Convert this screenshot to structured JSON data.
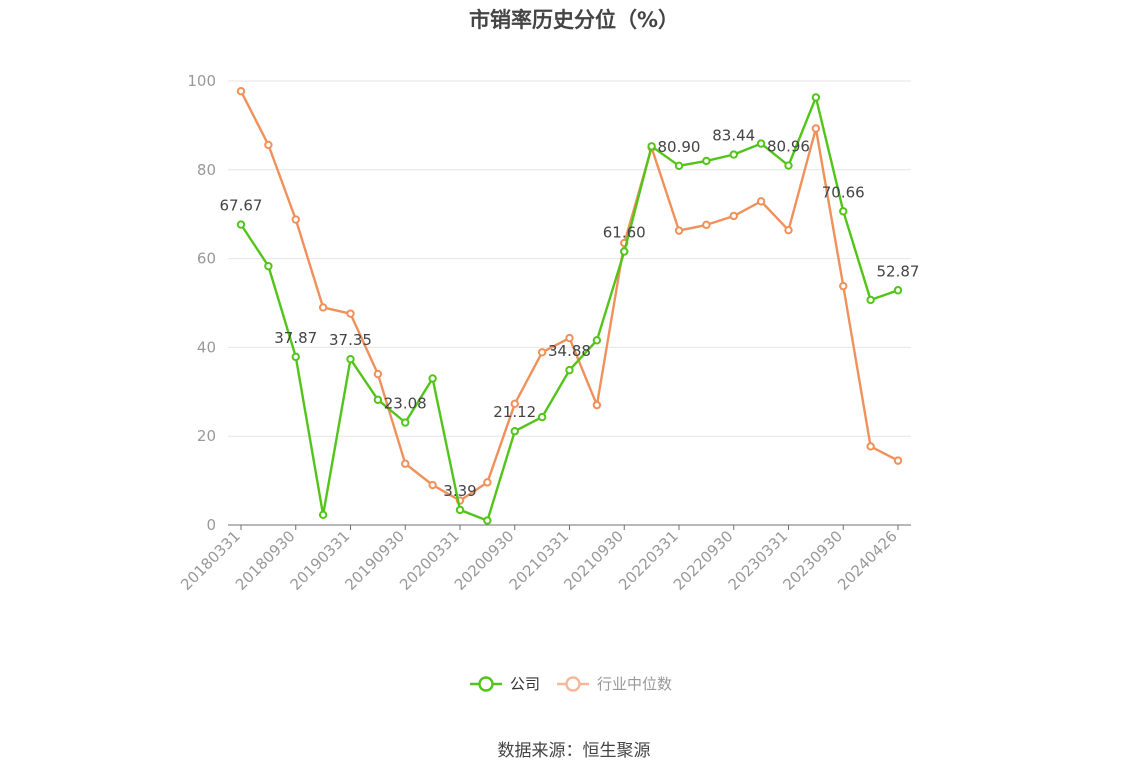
{
  "chart_data": {
    "type": "line",
    "title": "市销率历史分位（%）",
    "source": "数据来源：恒生聚源",
    "ylim": [
      0,
      100
    ],
    "yticks": [
      0,
      20,
      40,
      60,
      80,
      100
    ],
    "grid": true,
    "legend_position": "bottom",
    "x_tick_labels": [
      "20180331",
      "20180930",
      "20190331",
      "20190930",
      "20200331",
      "20200930",
      "20210331",
      "20210930",
      "20220331",
      "20220930",
      "20230331",
      "20230930",
      "20240426"
    ],
    "x": [
      "20180331",
      "20180630",
      "20180930",
      "20181231",
      "20190331",
      "20190630",
      "20190930",
      "20191231",
      "20200331",
      "20200630",
      "20200930",
      "20201231",
      "20210331",
      "20210630",
      "20210930",
      "20211231",
      "20220331",
      "20220630",
      "20220930",
      "20221231",
      "20230331",
      "20230630",
      "20230930",
      "20231231",
      "20240426"
    ],
    "series": [
      {
        "name": "公司",
        "color": "#52c41a",
        "values": [
          67.67,
          58.3,
          37.87,
          2.3,
          37.35,
          28.2,
          23.08,
          33.0,
          3.39,
          1.0,
          21.12,
          24.3,
          34.88,
          41.6,
          61.6,
          85.3,
          80.9,
          82.0,
          83.44,
          85.9,
          80.96,
          96.3,
          70.66,
          50.7,
          52.87
        ],
        "labels": [
          "67.67",
          null,
          "37.87",
          null,
          "37.35",
          null,
          "23.08",
          null,
          "3.39",
          null,
          "21.12",
          null,
          "34.88",
          null,
          "61.60",
          null,
          "80.90",
          null,
          "83.44",
          null,
          "80.96",
          null,
          "70.66",
          null,
          "52.87"
        ]
      },
      {
        "name": "行业中位数",
        "color": "#f0905a",
        "values": [
          97.7,
          85.6,
          68.8,
          49.0,
          47.6,
          34.0,
          13.8,
          9.0,
          5.5,
          9.6,
          27.3,
          38.9,
          42.1,
          27.0,
          63.5,
          85.0,
          66.3,
          67.6,
          69.6,
          72.9,
          66.4,
          89.3,
          53.8,
          17.7,
          14.5
        ]
      }
    ]
  }
}
